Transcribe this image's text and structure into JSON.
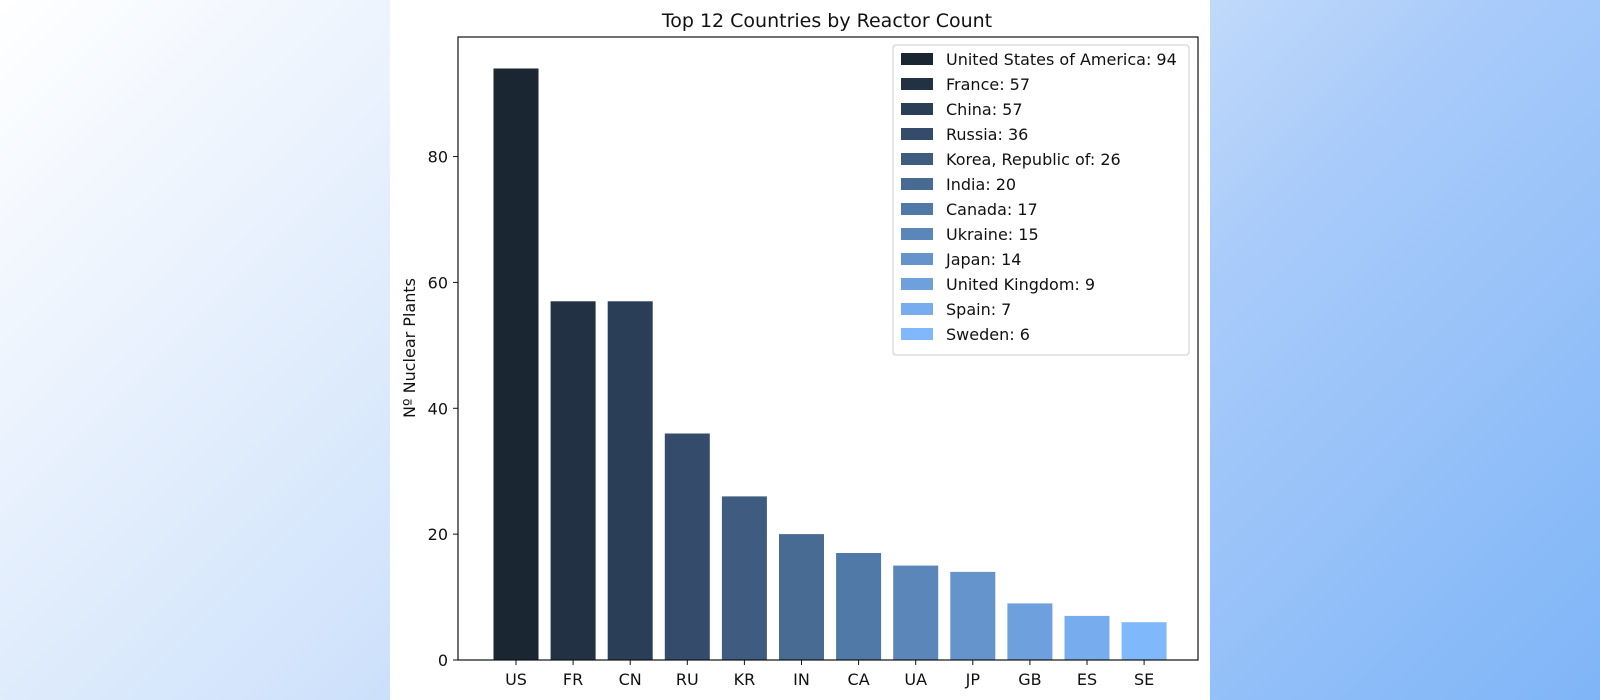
{
  "chart_data": {
    "type": "bar",
    "title": "Top 12 Countries by Reactor Count",
    "xlabel": "",
    "ylabel": "Nº Nuclear Plants",
    "categories": [
      "US",
      "FR",
      "CN",
      "RU",
      "KR",
      "IN",
      "CA",
      "UA",
      "JP",
      "GB",
      "ES",
      "SE"
    ],
    "values": [
      94,
      57,
      57,
      36,
      26,
      20,
      17,
      15,
      14,
      9,
      7,
      6
    ],
    "colors": [
      "#1b2633",
      "#223143",
      "#2b3e57",
      "#344b6b",
      "#3e5b80",
      "#476b93",
      "#5079a8",
      "#5a86ba",
      "#6593cb",
      "#6ea0dd",
      "#77adee",
      "#80b9fb"
    ],
    "legend": [
      "United States of America: 94",
      "France: 57",
      "China: 57",
      "Russia: 36",
      "Korea, Republic of: 26",
      "India: 20",
      "Canada: 17",
      "Ukraine: 15",
      "Japan: 14",
      "United Kingdom: 9",
      "Spain: 7",
      "Sweden: 6"
    ],
    "legend_position": "top-right",
    "ylim": [
      0,
      99
    ],
    "yticks": [
      0,
      20,
      40,
      60,
      80
    ],
    "grid": false
  }
}
